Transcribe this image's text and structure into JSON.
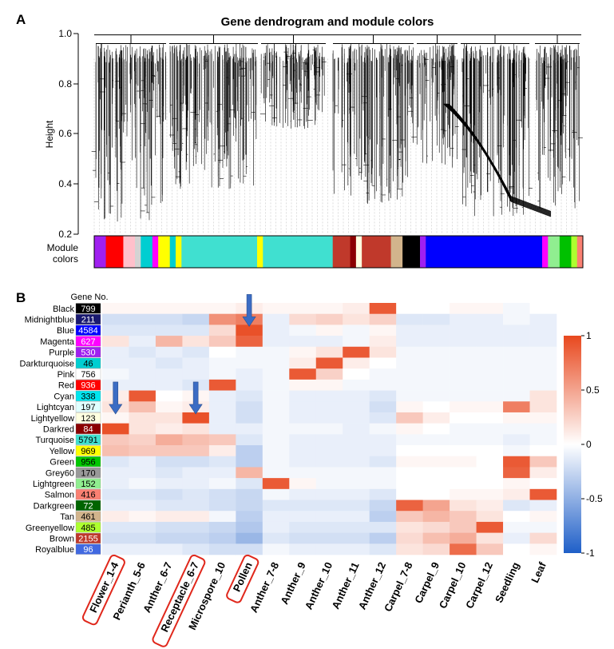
{
  "panel_a": {
    "label": "A",
    "title": "Gene dendrogram and module colors",
    "ylabel": "Height",
    "yticks": [
      "0.2",
      "0.4",
      "0.6",
      "0.8",
      "1.0"
    ],
    "module_label_line1": "Module",
    "module_label_line2": "colors"
  },
  "panel_b": {
    "label": "B",
    "gene_no_header": "Gene No.",
    "legend_ticks": [
      "1",
      "0.5",
      "0",
      "-0.5",
      "-1"
    ]
  },
  "colors": {
    "positive": "#e8481e",
    "negative": "#1f5fc8",
    "neutral": "#ffffff",
    "arrow": "#3b6cc4",
    "highlight_box": "#e0271b"
  },
  "module_bar": [
    {
      "color": "#a020f0",
      "w": 2
    },
    {
      "color": "#ff0000",
      "w": 3
    },
    {
      "color": "#ffc0cb",
      "w": 2
    },
    {
      "color": "#d3d3d3",
      "w": 1
    },
    {
      "color": "#00ced1",
      "w": 2
    },
    {
      "color": "#ff00ff",
      "w": 1
    },
    {
      "color": "#ffff00",
      "w": 2
    },
    {
      "color": "#00ced1",
      "w": 1
    },
    {
      "color": "#ffff00",
      "w": 1
    },
    {
      "color": "#40e0d0",
      "w": 13
    },
    {
      "color": "#ffff00",
      "w": 1
    },
    {
      "color": "#40e0d0",
      "w": 12
    },
    {
      "color": "#c0392b",
      "w": 3
    },
    {
      "color": "#8b0000",
      "w": 1
    },
    {
      "color": "#ffffe0",
      "w": 1
    },
    {
      "color": "#c0392b",
      "w": 5
    },
    {
      "color": "#d2b48c",
      "w": 2
    },
    {
      "color": "#000000",
      "w": 3
    },
    {
      "color": "#a020f0",
      "w": 1
    },
    {
      "color": "#0000ff",
      "w": 20
    },
    {
      "color": "#ff00ff",
      "w": 1
    },
    {
      "color": "#90ee90",
      "w": 2
    },
    {
      "color": "#00c000",
      "w": 2
    },
    {
      "color": "#adff2f",
      "w": 1
    },
    {
      "color": "#fa8072",
      "w": 1
    }
  ],
  "chart_data": {
    "type": "heatmap",
    "title": "Gene dendrogram and module colors",
    "value_range": [
      -1,
      1
    ],
    "columns": [
      "Flower_1-4",
      "Perianth_5-6",
      "Anther_6-7",
      "Receptacle_6-7",
      "Microspore_10",
      "Pollen",
      "Anther_7-8",
      "Anther_9",
      "Anther_10",
      "Anther_11",
      "Anther_12",
      "Carpel_7-8",
      "Carpel_9",
      "Carpel_10",
      "Carpel_12",
      "Seedling",
      "Leaf"
    ],
    "highlighted_columns": [
      "Flower_1-4",
      "Receptacle_6-7",
      "Pollen"
    ],
    "arrow_cells": [
      {
        "row": "Lightcyan",
        "col": "Flower_1-4"
      },
      {
        "row": "Lightcyan",
        "col": "Receptacle_6-7"
      },
      {
        "row": "Midnightblue",
        "col": "Pollen"
      }
    ],
    "rows": [
      {
        "module": "Black",
        "gene_no": "799",
        "color": "#000000",
        "text_color": "#ffffff",
        "values": [
          0.05,
          0.05,
          0.05,
          0.05,
          0.05,
          0.1,
          0.05,
          0.05,
          0.05,
          0.1,
          0.9,
          0.0,
          0.0,
          0.05,
          0.05,
          -0.05,
          0.0
        ]
      },
      {
        "module": "Midnightblue",
        "gene_no": "211",
        "color": "#191970",
        "text_color": "#ffffff",
        "values": [
          -0.2,
          -0.2,
          -0.2,
          -0.25,
          0.6,
          0.7,
          -0.1,
          0.2,
          0.25,
          0.15,
          0.25,
          -0.15,
          -0.15,
          -0.1,
          -0.1,
          -0.05,
          -0.1
        ]
      },
      {
        "module": "Blue",
        "gene_no": "4584",
        "color": "#0000ff",
        "text_color": "#ffffff",
        "values": [
          -0.15,
          -0.15,
          -0.15,
          -0.15,
          0.2,
          0.95,
          -0.1,
          -0.05,
          0.05,
          -0.05,
          0.05,
          -0.1,
          -0.1,
          -0.1,
          -0.1,
          -0.1,
          -0.1
        ]
      },
      {
        "module": "Magenta",
        "gene_no": "627",
        "color": "#ff00ff",
        "text_color": "#ffffff",
        "values": [
          0.15,
          -0.1,
          0.4,
          0.15,
          0.3,
          0.85,
          -0.1,
          -0.1,
          -0.1,
          -0.05,
          0.1,
          -0.1,
          -0.1,
          -0.1,
          -0.1,
          -0.1,
          -0.1
        ]
      },
      {
        "module": "Purple",
        "gene_no": "530",
        "color": "#a020f0",
        "text_color": "#ffffff",
        "values": [
          -0.1,
          -0.15,
          -0.1,
          -0.15,
          0.0,
          -0.05,
          -0.05,
          0.05,
          0.15,
          0.9,
          0.15,
          -0.05,
          -0.05,
          -0.05,
          -0.05,
          -0.05,
          -0.05
        ]
      },
      {
        "module": "Darkturquoise",
        "gene_no": "46",
        "color": "#00ced1",
        "text_color": "#000000",
        "values": [
          -0.1,
          -0.1,
          -0.15,
          -0.1,
          -0.05,
          -0.05,
          -0.05,
          0.1,
          0.9,
          0.1,
          0.0,
          -0.05,
          -0.05,
          -0.05,
          -0.05,
          -0.05,
          -0.05
        ]
      },
      {
        "module": "Pink",
        "gene_no": "756",
        "color": "#ffffff",
        "text_color": "#000000",
        "values": [
          -0.05,
          -0.1,
          -0.1,
          -0.1,
          -0.05,
          -0.1,
          -0.05,
          0.9,
          0.25,
          0.0,
          -0.05,
          -0.05,
          -0.05,
          -0.05,
          -0.05,
          -0.05,
          -0.05
        ]
      },
      {
        "module": "Red",
        "gene_no": "936",
        "color": "#ff0000",
        "text_color": "#ffffff",
        "values": [
          -0.1,
          -0.1,
          -0.1,
          -0.15,
          0.9,
          -0.1,
          -0.05,
          0.05,
          0.05,
          -0.05,
          -0.05,
          -0.05,
          -0.05,
          -0.05,
          -0.05,
          -0.05,
          -0.05
        ]
      },
      {
        "module": "Cyan",
        "gene_no": "338",
        "color": "#00e5ee",
        "text_color": "#000000",
        "values": [
          0.1,
          0.9,
          0.0,
          0.05,
          -0.1,
          -0.15,
          -0.05,
          -0.1,
          -0.1,
          -0.1,
          -0.15,
          -0.05,
          -0.05,
          -0.05,
          -0.05,
          -0.05,
          0.15
        ]
      },
      {
        "module": "Lightcyan",
        "gene_no": "197",
        "color": "#e0ffff",
        "text_color": "#000000",
        "values": [
          0.15,
          0.35,
          0.05,
          0.1,
          -0.1,
          -0.2,
          -0.05,
          -0.1,
          -0.1,
          -0.1,
          -0.2,
          0.05,
          0.0,
          0.05,
          0.05,
          0.7,
          0.15
        ]
      },
      {
        "module": "Lightyellow",
        "gene_no": "123",
        "color": "#ffffe0",
        "text_color": "#000000",
        "values": [
          0.05,
          0.15,
          0.15,
          0.95,
          -0.1,
          -0.2,
          -0.05,
          -0.1,
          -0.1,
          -0.1,
          -0.15,
          0.3,
          0.1,
          0.0,
          0.0,
          0.05,
          0.05
        ]
      },
      {
        "module": "Darkred",
        "gene_no": "84",
        "color": "#8b0000",
        "text_color": "#ffffff",
        "values": [
          0.95,
          0.15,
          0.1,
          0.15,
          -0.1,
          -0.1,
          -0.05,
          -0.05,
          -0.05,
          -0.1,
          -0.05,
          0.05,
          0.0,
          -0.05,
          -0.05,
          -0.05,
          -0.05
        ]
      },
      {
        "module": "Turquoise",
        "gene_no": "5791",
        "color": "#40e0d0",
        "text_color": "#000000",
        "values": [
          0.3,
          0.25,
          0.45,
          0.35,
          0.3,
          -0.15,
          -0.05,
          -0.1,
          -0.1,
          -0.1,
          -0.1,
          -0.05,
          -0.05,
          -0.05,
          -0.05,
          -0.1,
          -0.05
        ]
      },
      {
        "module": "Yellow",
        "gene_no": "969",
        "color": "#ffff00",
        "text_color": "#000000",
        "values": [
          0.35,
          0.3,
          0.3,
          0.3,
          0.1,
          -0.3,
          -0.05,
          -0.1,
          -0.1,
          -0.1,
          -0.1,
          0.0,
          0.0,
          0.0,
          0.0,
          -0.05,
          0.0
        ]
      },
      {
        "module": "Green",
        "gene_no": "956",
        "color": "#00c800",
        "text_color": "#000000",
        "values": [
          -0.15,
          -0.1,
          -0.2,
          -0.2,
          -0.15,
          -0.3,
          -0.05,
          -0.1,
          -0.1,
          -0.1,
          -0.15,
          0.05,
          0.05,
          0.05,
          0.0,
          0.9,
          0.3
        ]
      },
      {
        "module": "Grey60",
        "gene_no": "170",
        "color": "#999999",
        "text_color": "#000000",
        "values": [
          -0.1,
          -0.1,
          -0.15,
          -0.1,
          -0.1,
          0.4,
          -0.05,
          -0.05,
          -0.05,
          -0.05,
          -0.05,
          0.0,
          0.0,
          0.0,
          0.0,
          0.85,
          0.1
        ]
      },
      {
        "module": "Lightgreen",
        "gene_no": "152",
        "color": "#90ee90",
        "text_color": "#000000",
        "values": [
          -0.1,
          -0.05,
          -0.1,
          -0.1,
          -0.05,
          -0.15,
          0.9,
          0.05,
          -0.05,
          -0.05,
          -0.05,
          0.0,
          0.0,
          0.0,
          0.0,
          0.05,
          0.0
        ]
      },
      {
        "module": "Salmon",
        "gene_no": "416",
        "color": "#fa8072",
        "text_color": "#000000",
        "values": [
          -0.15,
          -0.15,
          -0.2,
          -0.15,
          -0.2,
          -0.25,
          -0.05,
          -0.1,
          -0.1,
          -0.1,
          -0.15,
          0.0,
          0.0,
          0.05,
          0.05,
          0.1,
          0.9
        ]
      },
      {
        "module": "Darkgreen",
        "gene_no": "72",
        "color": "#006400",
        "text_color": "#ffffff",
        "values": [
          -0.1,
          -0.1,
          -0.15,
          -0.15,
          -0.2,
          -0.25,
          -0.15,
          -0.15,
          -0.15,
          -0.15,
          -0.25,
          0.85,
          0.5,
          0.15,
          0.1,
          -0.15,
          -0.1
        ]
      },
      {
        "module": "Tan",
        "gene_no": "461",
        "color": "#d2b48c",
        "text_color": "#000000",
        "values": [
          0.1,
          0.05,
          0.1,
          0.1,
          -0.05,
          -0.3,
          -0.1,
          -0.1,
          -0.1,
          -0.1,
          -0.3,
          0.3,
          0.4,
          0.3,
          0.15,
          0.0,
          0.05
        ]
      },
      {
        "module": "Greenyellow",
        "gene_no": "485",
        "color": "#adff2f",
        "text_color": "#000000",
        "values": [
          -0.15,
          -0.15,
          -0.2,
          -0.2,
          -0.25,
          -0.35,
          -0.1,
          -0.15,
          -0.15,
          -0.15,
          -0.15,
          0.15,
          0.2,
          0.3,
          0.9,
          -0.05,
          -0.05
        ]
      },
      {
        "module": "Brown",
        "gene_no": "2155",
        "color": "#c0392b",
        "text_color": "#ffffff",
        "values": [
          -0.2,
          -0.2,
          -0.25,
          -0.25,
          -0.3,
          -0.45,
          -0.15,
          -0.2,
          -0.2,
          -0.2,
          -0.3,
          0.2,
          0.35,
          0.45,
          0.15,
          -0.1,
          0.2
        ]
      },
      {
        "module": "Royalblue",
        "gene_no": "96",
        "color": "#4169e1",
        "text_color": "#ffffff",
        "values": [
          -0.1,
          -0.1,
          -0.1,
          -0.15,
          -0.2,
          -0.2,
          -0.05,
          -0.1,
          -0.1,
          -0.1,
          -0.15,
          0.15,
          0.2,
          0.8,
          0.3,
          0.0,
          0.05
        ]
      }
    ]
  }
}
